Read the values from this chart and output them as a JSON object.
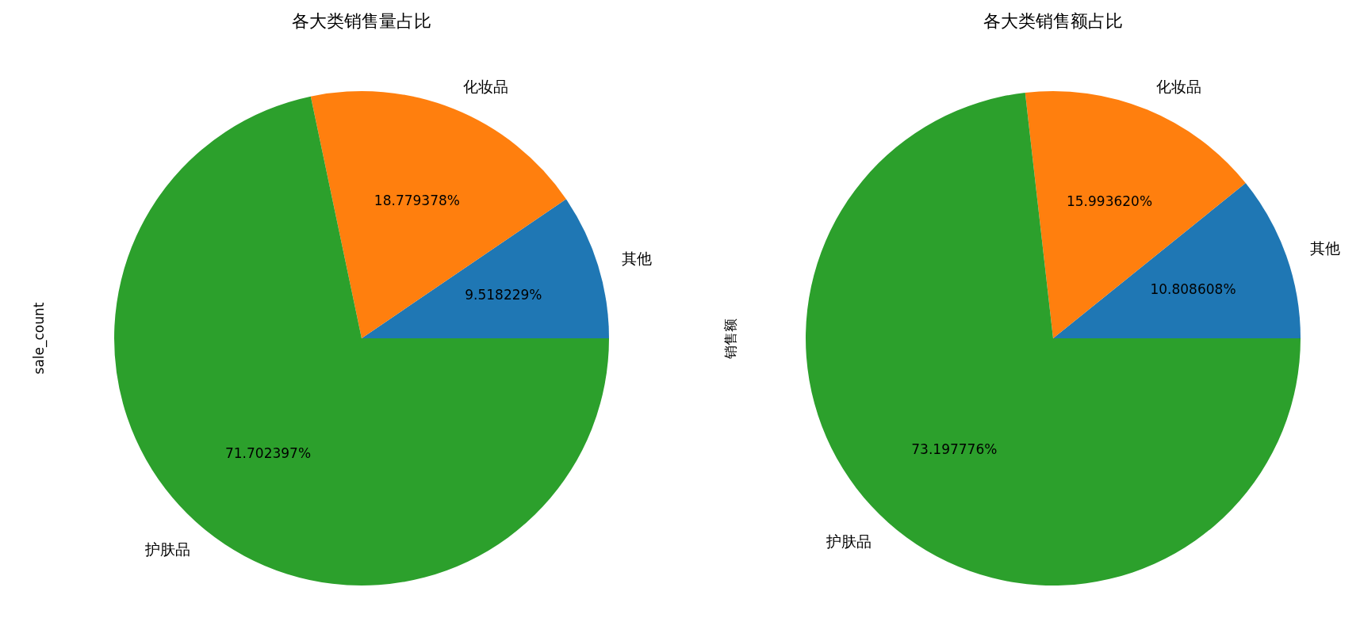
{
  "chart_data": [
    {
      "type": "pie",
      "title": "各大类销售量占比",
      "ylabel": "sale_count",
      "categories": [
        "其他",
        "化妆品",
        "护肤品"
      ],
      "values": [
        9.518229,
        18.779378,
        71.702397
      ],
      "colors": [
        "#1f77b4",
        "#ff7f0e",
        "#2ca02c"
      ],
      "value_labels": [
        "9.518229%",
        "18.779378%",
        "71.702397%"
      ]
    },
    {
      "type": "pie",
      "title": "各大类销售额占比",
      "ylabel": "销售额",
      "categories": [
        "其他",
        "化妆品",
        "护肤品"
      ],
      "values": [
        10.808608,
        15.99362,
        73.197776
      ],
      "colors": [
        "#1f77b4",
        "#ff7f0e",
        "#2ca02c"
      ],
      "value_labels": [
        "10.808608%",
        "15.993620%",
        "73.197776%"
      ]
    }
  ]
}
